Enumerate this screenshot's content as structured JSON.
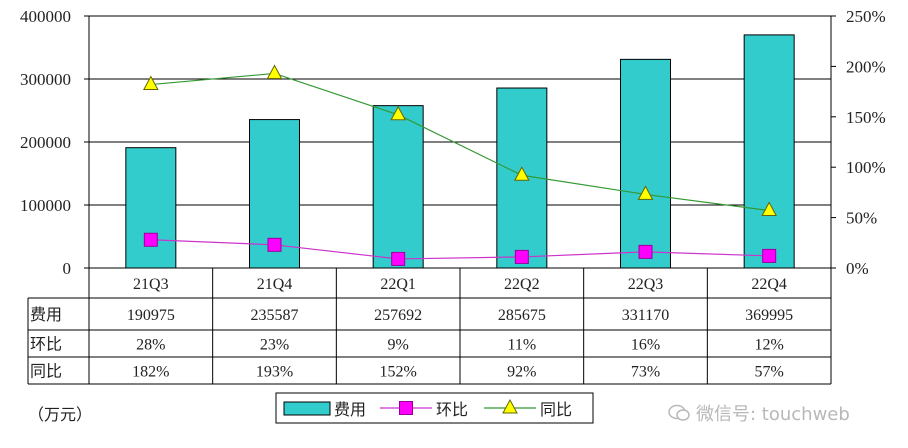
{
  "chart_data": {
    "type": "bar",
    "categories": [
      "21Q3",
      "21Q4",
      "22Q1",
      "22Q2",
      "22Q3",
      "22Q4"
    ],
    "series": [
      {
        "name": "费用",
        "type": "bar",
        "axis": "left",
        "values": [
          190975,
          235587,
          257692,
          285675,
          331170,
          369995
        ]
      },
      {
        "name": "环比",
        "type": "line",
        "axis": "right",
        "values": [
          28,
          23,
          9,
          11,
          16,
          12
        ]
      },
      {
        "name": "同比",
        "type": "line",
        "axis": "right",
        "values": [
          182,
          193,
          152,
          92,
          73,
          57
        ]
      }
    ],
    "left_axis": {
      "ylim": [
        0,
        400000
      ],
      "ticks": [
        "0",
        "100000",
        "200000",
        "300000",
        "400000"
      ]
    },
    "right_axis": {
      "ylim": [
        0,
        250
      ],
      "ticks": [
        "0%",
        "50%",
        "100%",
        "150%",
        "200%",
        "250%"
      ]
    },
    "table": {
      "rows": [
        {
          "label": "费用",
          "cells": [
            "190975",
            "235587",
            "257692",
            "285675",
            "331170",
            "369995"
          ]
        },
        {
          "label": "环比",
          "cells": [
            "28%",
            "23%",
            "9%",
            "11%",
            "16%",
            "12%"
          ]
        },
        {
          "label": "同比",
          "cells": [
            "182%",
            "193%",
            "152%",
            "92%",
            "73%",
            "57%"
          ]
        }
      ]
    },
    "legend": [
      "费用",
      "环比",
      "同比"
    ],
    "unit": "（万元）",
    "watermark": "微信号: touchweb"
  },
  "colors": {
    "bar": "#33cccc",
    "mom": "#ff00ff",
    "mom_line": "#cc33cc",
    "yoy": "#ffff00",
    "yoy_line": "#339933"
  }
}
